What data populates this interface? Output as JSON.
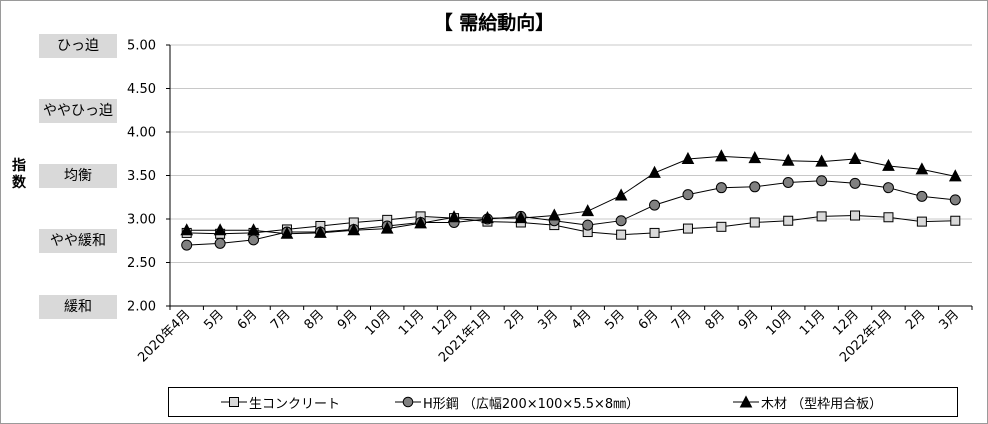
{
  "chart_data": {
    "type": "line",
    "title": "【 需給動向】",
    "ylabel": "指数",
    "ylim": [
      2.0,
      5.0
    ],
    "yticks": [
      "2.00",
      "2.50",
      "3.00",
      "3.50",
      "4.00",
      "4.50",
      "5.00"
    ],
    "level_labels": [
      {
        "label": "ひっ迫",
        "value": 5.0
      },
      {
        "label": "ややひっ迫",
        "value": 4.25
      },
      {
        "label": "均衡",
        "value": 3.5
      },
      {
        "label": "やや緩和",
        "value": 2.75
      },
      {
        "label": "緩和",
        "value": 2.0
      }
    ],
    "categories": [
      "2020年4月",
      "5月",
      "6月",
      "7月",
      "8月",
      "9月",
      "10月",
      "11月",
      "12月",
      "2021年1月",
      "2月",
      "3月",
      "4月",
      "5月",
      "6月",
      "7月",
      "8月",
      "9月",
      "10月",
      "11月",
      "12月",
      "2022年1月",
      "2月",
      "3月"
    ],
    "series": [
      {
        "name": "生コンクリート",
        "marker": "square",
        "values": [
          2.84,
          2.83,
          2.84,
          2.88,
          2.92,
          2.96,
          2.99,
          3.03,
          3.01,
          2.97,
          2.96,
          2.93,
          2.85,
          2.82,
          2.84,
          2.89,
          2.91,
          2.96,
          2.98,
          3.03,
          3.04,
          3.02,
          2.97,
          2.98
        ]
      },
      {
        "name": "H形鋼 （広幅200×100×5.5×8㎜）",
        "marker": "circle",
        "values": [
          2.7,
          2.72,
          2.76,
          2.85,
          2.85,
          2.88,
          2.92,
          2.96,
          2.96,
          3.0,
          3.03,
          2.98,
          2.93,
          2.98,
          3.16,
          3.28,
          3.36,
          3.37,
          3.42,
          3.44,
          3.41,
          3.36,
          3.26,
          3.22
        ]
      },
      {
        "name": "木材 （型枠用合板）",
        "marker": "triangle",
        "values": [
          2.87,
          2.87,
          2.87,
          2.83,
          2.84,
          2.87,
          2.89,
          2.95,
          3.02,
          3.01,
          3.01,
          3.04,
          3.09,
          3.27,
          3.53,
          3.69,
          3.72,
          3.7,
          3.67,
          3.66,
          3.69,
          3.61,
          3.57,
          3.49
        ]
      }
    ],
    "grid": true,
    "legend_position": "bottom",
    "line_color": "#000000",
    "marker_fill": {
      "square": "#d9d9d9",
      "circle": "#808080",
      "triangle": "#000000"
    }
  }
}
